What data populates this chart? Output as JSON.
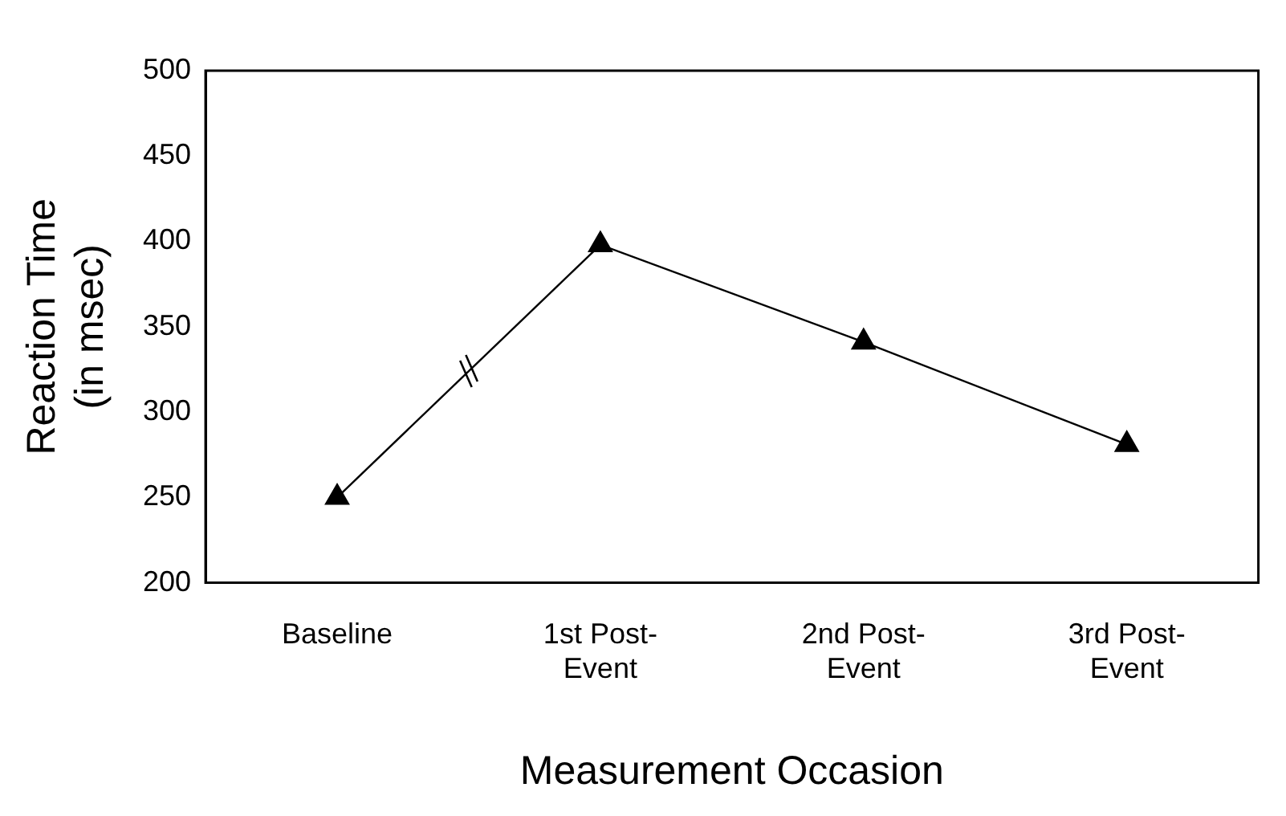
{
  "chart_data": {
    "type": "line",
    "xlabel": "Measurement Occasion",
    "ylabel": "Reaction Time\n(in msec)",
    "categories": [
      "Baseline",
      "1st Post-Event",
      "2nd Post-Event",
      "3rd Post-Event"
    ],
    "series": [
      {
        "color": "#000000",
        "values": [
          250,
          398,
          341,
          281
        ]
      }
    ],
    "ylim": [
      200,
      500
    ],
    "yticks": [
      200,
      250,
      300,
      350,
      400,
      450,
      500
    ],
    "grid": false,
    "legend": false,
    "marker": "triangle",
    "line_style": "solid"
  }
}
